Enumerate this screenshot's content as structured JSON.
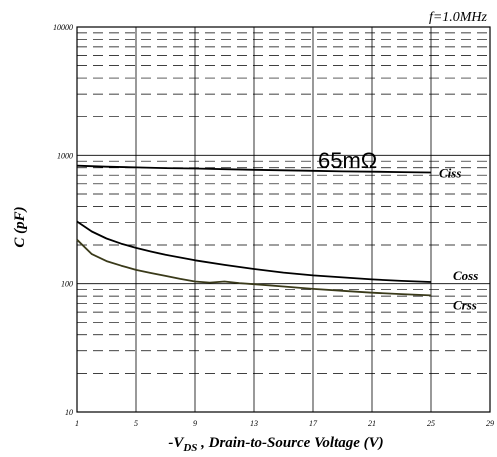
{
  "chart_data": {
    "type": "line",
    "note": "f=1.0MHz",
    "xlabel_prefix": "-V",
    "xlabel_subscript": "DS",
    "xlabel_suffix": " , Drain-to-Source Voltage (V)",
    "ylabel": "C (pF)",
    "xlim": [
      1,
      29
    ],
    "ylim": [
      10,
      10000
    ],
    "y_scale": "log",
    "grid": true,
    "x_ticks": [
      1,
      5,
      9,
      13,
      17,
      21,
      25,
      29
    ],
    "y_ticks": [
      {
        "value": 10,
        "label": "10"
      },
      {
        "value": 100,
        "label": "100"
      },
      {
        "value": 1000,
        "label": "1000"
      },
      {
        "value": 10000,
        "label": "10000"
      }
    ],
    "annotation": "65mΩ",
    "series": [
      {
        "name": "Ciss",
        "x": [
          1,
          3,
          5,
          7,
          9,
          11,
          13,
          15,
          17,
          19,
          21,
          23,
          25
        ],
        "y": [
          830,
          815,
          805,
          795,
          790,
          780,
          772,
          765,
          758,
          750,
          745,
          740,
          735
        ]
      },
      {
        "name": "Coss",
        "x": [
          1,
          2,
          3,
          4,
          5,
          6,
          7,
          9,
          11,
          13,
          15,
          17,
          19,
          21,
          23,
          25
        ],
        "y": [
          305,
          255,
          225,
          205,
          190,
          178,
          168,
          152,
          140,
          130,
          122,
          116,
          112,
          108,
          105,
          103
        ]
      },
      {
        "name": "Crss",
        "x": [
          1,
          2,
          3,
          4,
          5,
          6,
          7,
          8,
          9,
          10,
          11,
          12,
          13,
          15,
          17,
          19,
          21,
          23,
          25
        ],
        "y": [
          220,
          170,
          150,
          138,
          128,
          121,
          115,
          109,
          104,
          102,
          104,
          101,
          99,
          95,
          91,
          88,
          85,
          83,
          81
        ]
      }
    ],
    "colors": {
      "line": "#000000",
      "grid_major": "#000000",
      "grid_minor": "#000000",
      "background": "#ffffff",
      "crss_line": "#3a3a1a"
    }
  }
}
